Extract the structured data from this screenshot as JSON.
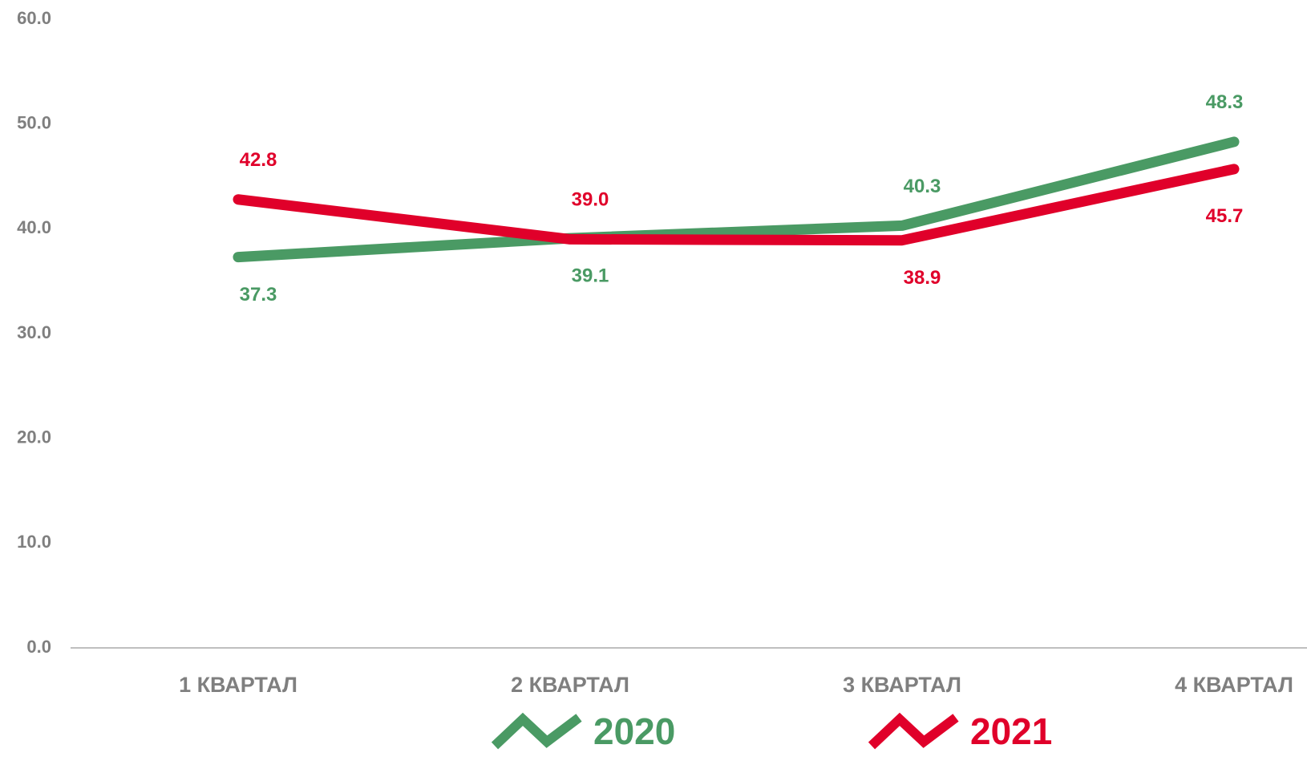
{
  "chart_data": {
    "type": "line",
    "categories": [
      "1 КВАРТАЛ",
      "2 КВАРТАЛ",
      "3 КВАРТАЛ",
      "4 КВАРТАЛ"
    ],
    "series": [
      {
        "name": "2020",
        "color": "#4a9a64",
        "values": [
          37.3,
          39.1,
          40.3,
          48.3
        ]
      },
      {
        "name": "2021",
        "color": "#e0002a",
        "values": [
          42.8,
          39.0,
          38.9,
          45.7
        ],
        "value_labels": [
          "42.8",
          "39.0",
          "38.9",
          "45.7"
        ]
      }
    ],
    "ylim": [
      0,
      60
    ],
    "yticks": [
      {
        "value": 0,
        "label": "0.0"
      },
      {
        "value": 10,
        "label": "10.0"
      },
      {
        "value": 20,
        "label": "20.0"
      },
      {
        "value": 30,
        "label": "30.0"
      },
      {
        "value": 40,
        "label": "40.0"
      },
      {
        "value": 50,
        "label": "50.0"
      },
      {
        "value": 60,
        "label": "60.0"
      }
    ]
  }
}
